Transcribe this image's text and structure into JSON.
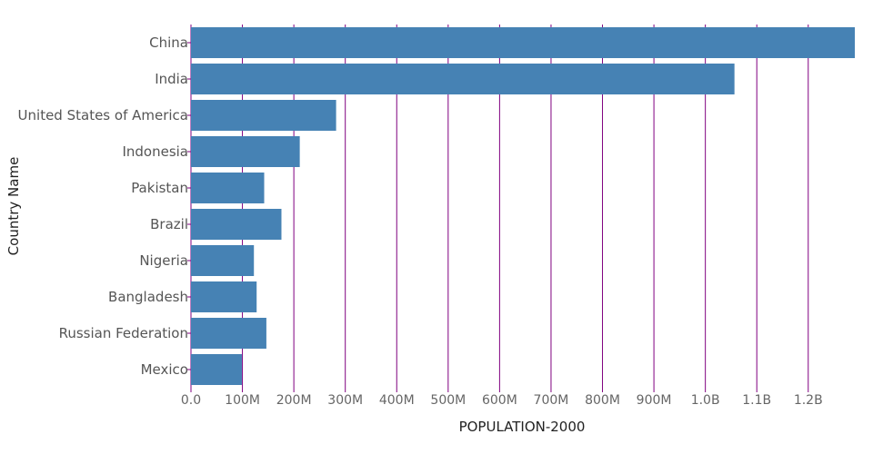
{
  "chart_data": {
    "type": "bar",
    "orientation": "horizontal",
    "xlabel": "POPULATION-2000",
    "ylabel": "Country Name",
    "categories": [
      "China",
      "India",
      "United States of America",
      "Indonesia",
      "Pakistan",
      "Brazil",
      "Nigeria",
      "Bangladesh",
      "Russian Federation",
      "Mexico"
    ],
    "values": [
      1290550000,
      1056580000,
      282160000,
      211510000,
      142340000,
      175870000,
      122350000,
      127660000,
      146600000,
      98900000
    ],
    "xlim": [
      0,
      1290550000
    ],
    "xticks": [
      0,
      100000000,
      200000000,
      300000000,
      400000000,
      500000000,
      600000000,
      700000000,
      800000000,
      900000000,
      1000000000,
      1100000000,
      1200000000
    ],
    "xtick_labels": [
      "0.0",
      "100M",
      "200M",
      "300M",
      "400M",
      "500M",
      "600M",
      "700M",
      "800M",
      "900M",
      "1.0B",
      "1.1B",
      "1.2B"
    ],
    "grid": true,
    "colors": {
      "bar": "#4682b4",
      "grid": "#800080",
      "axis_tick": "#800080"
    }
  }
}
